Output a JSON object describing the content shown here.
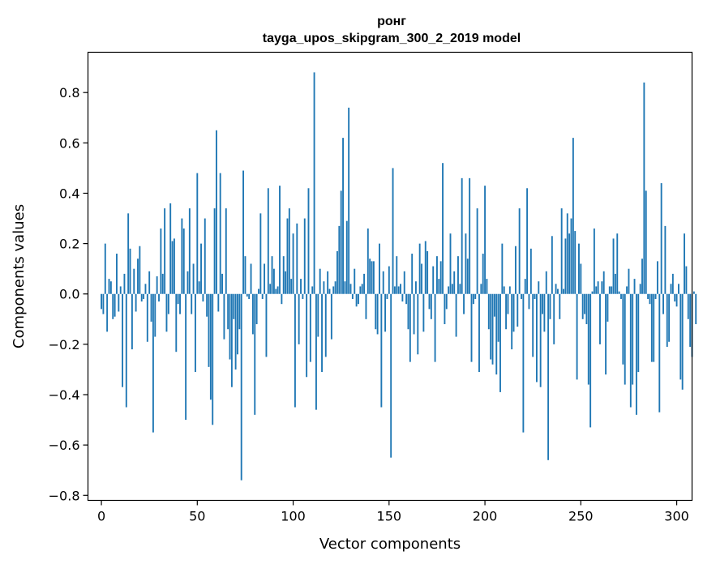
{
  "chart_data": {
    "type": "bar",
    "title": "ронг",
    "subtitle": "tayga_upos_skipgram_300_2_2019 model",
    "xlabel": "Vector components",
    "ylabel": "Components values",
    "xlim": [
      -7,
      308
    ],
    "ylim": [
      -0.82,
      0.96
    ],
    "xticks": [
      0,
      50,
      100,
      150,
      200,
      250,
      300
    ],
    "yticks": [
      -0.8,
      -0.6,
      -0.4,
      -0.2,
      0.0,
      0.2,
      0.4,
      0.6,
      0.8
    ],
    "ytick_labels": [
      "−0.8",
      "−0.6",
      "−0.4",
      "−0.2",
      "0.0",
      "0.2",
      "0.4",
      "0.6",
      "0.8"
    ],
    "bar_color": "#1f77b4",
    "grid": false,
    "values": [
      -0.06,
      -0.08,
      0.2,
      -0.15,
      0.06,
      0.05,
      -0.1,
      -0.09,
      0.16,
      -0.07,
      0.03,
      -0.37,
      0.08,
      -0.45,
      0.32,
      0.18,
      -0.22,
      0.1,
      -0.07,
      0.14,
      0.19,
      -0.03,
      -0.02,
      0.04,
      -0.19,
      0.09,
      -0.11,
      -0.55,
      -0.17,
      0.07,
      -0.03,
      0.26,
      0.08,
      0.34,
      -0.15,
      -0.08,
      0.36,
      0.21,
      0.22,
      -0.23,
      -0.04,
      -0.08,
      0.3,
      0.26,
      -0.5,
      0.09,
      0.34,
      -0.08,
      0.12,
      -0.31,
      0.48,
      0.05,
      0.2,
      -0.03,
      0.3,
      -0.09,
      -0.29,
      -0.42,
      -0.52,
      0.34,
      0.65,
      -0.07,
      0.48,
      0.08,
      -0.18,
      0.34,
      -0.14,
      -0.26,
      -0.37,
      -0.1,
      -0.3,
      -0.24,
      -0.14,
      -0.74,
      0.49,
      0.15,
      -0.01,
      -0.02,
      0.12,
      -0.16,
      -0.48,
      -0.12,
      0.02,
      0.32,
      -0.02,
      0.12,
      -0.25,
      0.42,
      0.04,
      0.15,
      0.1,
      0.02,
      0.03,
      0.43,
      -0.04,
      0.15,
      0.09,
      0.3,
      0.34,
      0.06,
      0.24,
      -0.45,
      0.28,
      -0.2,
      0.06,
      -0.02,
      0.3,
      -0.33,
      0.42,
      -0.27,
      0.03,
      0.88,
      -0.46,
      -0.17,
      0.1,
      -0.31,
      0.05,
      -0.25,
      0.09,
      0.02,
      -0.18,
      0.03,
      0.05,
      0.17,
      0.27,
      0.41,
      0.62,
      0.05,
      0.29,
      0.74,
      0.04,
      -0.02,
      0.1,
      -0.05,
      -0.04,
      0.03,
      0.04,
      0.08,
      -0.1,
      0.26,
      0.14,
      0.13,
      0.13,
      -0.14,
      -0.16,
      0.2,
      -0.45,
      0.09,
      -0.15,
      -0.02,
      0.11,
      -0.65,
      0.5,
      0.03,
      0.15,
      0.03,
      0.04,
      -0.03,
      0.09,
      -0.04,
      -0.14,
      -0.27,
      0.16,
      -0.16,
      0.05,
      -0.24,
      0.2,
      0.12,
      -0.15,
      0.21,
      0.17,
      -0.06,
      -0.1,
      0.11,
      -0.27,
      0.15,
      0.06,
      0.13,
      0.52,
      -0.12,
      -0.06,
      0.03,
      0.24,
      0.04,
      0.09,
      -0.17,
      0.15,
      0.04,
      0.46,
      -0.08,
      0.24,
      0.14,
      0.46,
      -0.27,
      -0.04,
      -0.02,
      0.34,
      -0.31,
      0.04,
      0.16,
      0.43,
      0.06,
      -0.14,
      -0.26,
      -0.28,
      -0.09,
      -0.32,
      -0.19,
      -0.39,
      0.2,
      0.03,
      -0.14,
      -0.08,
      0.03,
      -0.22,
      -0.15,
      0.19,
      -0.13,
      0.34,
      -0.02,
      -0.55,
      0.06,
      0.42,
      -0.06,
      0.18,
      -0.25,
      -0.02,
      -0.35,
      0.05,
      -0.37,
      -0.08,
      -0.15,
      0.09,
      -0.66,
      -0.1,
      0.23,
      -0.2,
      0.04,
      0.02,
      -0.1,
      0.34,
      0.02,
      0.22,
      0.32,
      0.24,
      0.3,
      0.62,
      0.25,
      -0.34,
      0.2,
      0.12,
      -0.1,
      -0.08,
      -0.12,
      -0.36,
      -0.53,
      0.01,
      0.26,
      0.03,
      0.05,
      -0.2,
      0.05,
      0.09,
      -0.32,
      -0.11,
      0.03,
      0.03,
      0.22,
      0.08,
      0.24,
      0.01,
      -0.02,
      -0.28,
      -0.36,
      0.03,
      0.1,
      -0.45,
      -0.36,
      0.06,
      -0.48,
      -0.31,
      0.04,
      0.14,
      0.84,
      0.41,
      -0.02,
      -0.04,
      -0.27,
      -0.27,
      -0.02,
      0.13,
      -0.47,
      0.44,
      -0.08,
      0.27,
      -0.21,
      -0.19,
      0.04,
      0.08,
      -0.03,
      -0.05,
      0.04,
      -0.34,
      -0.38,
      0.24,
      0.11,
      -0.1,
      -0.21,
      -0.25,
      0.01,
      -0.12
    ]
  }
}
